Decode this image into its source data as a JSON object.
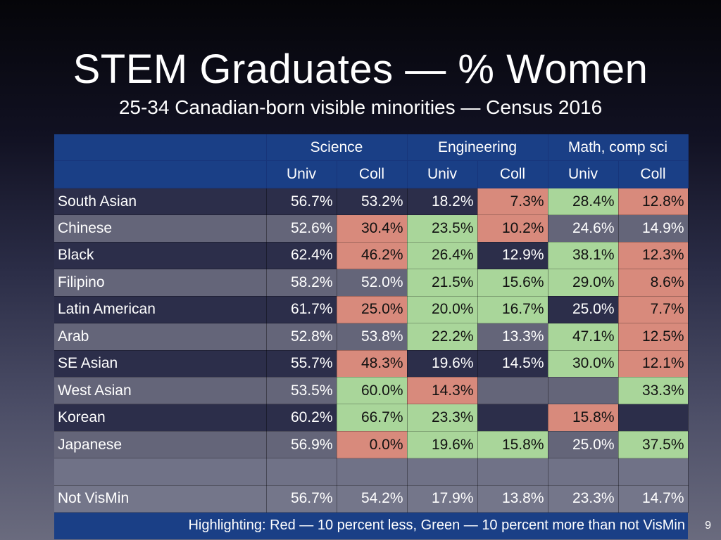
{
  "slide": {
    "title": "STEM Graduates — % Women",
    "subtitle": "25-34 Canadian-born visible minorities — Census 2016",
    "page_number": "9"
  },
  "table": {
    "groups": [
      "Science",
      "Engineering",
      "Math, comp sci"
    ],
    "subheaders": [
      "Univ",
      "Coll",
      "Univ",
      "Coll",
      "Univ",
      "Coll"
    ],
    "rows": [
      {
        "label": "South Asian",
        "values": [
          "56.7%",
          "53.2%",
          "18.2%",
          "7.3%",
          "28.4%",
          "12.8%"
        ],
        "highlight": [
          "",
          "",
          "",
          "red",
          "green",
          "red"
        ]
      },
      {
        "label": "Chinese",
        "values": [
          "52.6%",
          "30.4%",
          "23.5%",
          "10.2%",
          "24.6%",
          "14.9%"
        ],
        "highlight": [
          "",
          "red",
          "green",
          "red",
          "",
          ""
        ]
      },
      {
        "label": "Black",
        "values": [
          "62.4%",
          "46.2%",
          "26.4%",
          "12.9%",
          "38.1%",
          "12.3%"
        ],
        "highlight": [
          "",
          "red",
          "green",
          "",
          "green",
          "red"
        ]
      },
      {
        "label": "Filipino",
        "values": [
          "58.2%",
          "52.0%",
          "21.5%",
          "15.6%",
          "29.0%",
          "8.6%"
        ],
        "highlight": [
          "",
          "",
          "green",
          "green",
          "green",
          "red"
        ]
      },
      {
        "label": "Latin American",
        "values": [
          "61.7%",
          "25.0%",
          "20.0%",
          "16.7%",
          "25.0%",
          "7.7%"
        ],
        "highlight": [
          "",
          "red",
          "green",
          "green",
          "",
          "red"
        ]
      },
      {
        "label": "Arab",
        "values": [
          "52.8%",
          "53.8%",
          "22.2%",
          "13.3%",
          "47.1%",
          "12.5%"
        ],
        "highlight": [
          "",
          "",
          "green",
          "",
          "green",
          "red"
        ]
      },
      {
        "label": "SE Asian",
        "values": [
          "55.7%",
          "48.3%",
          "19.6%",
          "14.5%",
          "30.0%",
          "12.1%"
        ],
        "highlight": [
          "",
          "red",
          "",
          "",
          "green",
          "red"
        ]
      },
      {
        "label": "West Asian",
        "values": [
          "53.5%",
          "60.0%",
          "14.3%",
          "",
          "",
          "33.3%"
        ],
        "highlight": [
          "",
          "green",
          "red",
          "",
          "",
          "green"
        ]
      },
      {
        "label": "Korean",
        "values": [
          "60.2%",
          "66.7%",
          "23.3%",
          "",
          "15.8%",
          ""
        ],
        "highlight": [
          "",
          "green",
          "green",
          "",
          "red",
          ""
        ]
      },
      {
        "label": "Japanese",
        "values": [
          "56.9%",
          "0.0%",
          "19.6%",
          "15.8%",
          "25.0%",
          "37.5%"
        ],
        "highlight": [
          "",
          "red",
          "green",
          "green",
          "",
          "green"
        ]
      }
    ],
    "baseline": {
      "label": "Not VisMin",
      "values": [
        "56.7%",
        "54.2%",
        "17.9%",
        "13.8%",
        "23.3%",
        "14.7%"
      ]
    },
    "footer": "Highlighting:  Red — 10 percent less, Green — 10 percent more than not VisMin"
  },
  "colors": {
    "header_blue": "#1a3f86",
    "highlight_red": "#d88a7c",
    "highlight_green": "#a9d69a"
  }
}
